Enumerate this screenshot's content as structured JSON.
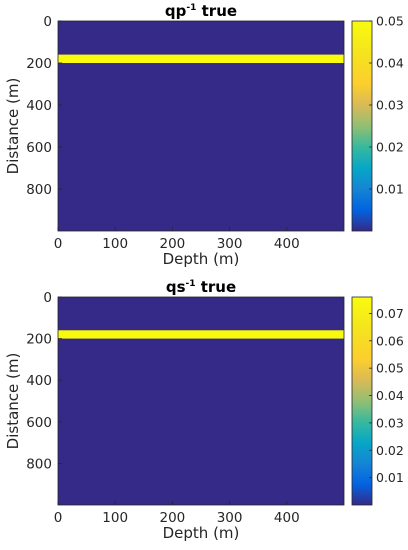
{
  "chart_data": [
    {
      "type": "heatmap",
      "title": "qp",
      "title_superscript": "-1",
      "title_suffix": " true",
      "xlabel": "Depth (m)",
      "ylabel": "Distance (m)",
      "xlim": [
        0,
        500
      ],
      "ylim": [
        0,
        1000
      ],
      "xticks": [
        "0",
        "100",
        "200",
        "300",
        "400"
      ],
      "yticks": [
        "0",
        "200",
        "400",
        "600",
        "800"
      ],
      "background_value": 0,
      "layer": {
        "y_start": 160,
        "y_end": 200,
        "value": 0.05
      },
      "colorbar": {
        "min": 0,
        "max": 0.05,
        "ticks": [
          "0.01",
          "0.02",
          "0.03",
          "0.04",
          "0.05"
        ]
      },
      "colormap": "parula",
      "colors": {
        "low": "#352a87",
        "high": "#f9fb0e"
      }
    },
    {
      "type": "heatmap",
      "title": "qs",
      "title_superscript": "-1",
      "title_suffix": " true",
      "xlabel": "Depth (m)",
      "ylabel": "Distance (m)",
      "xlim": [
        0,
        500
      ],
      "ylim": [
        0,
        1000
      ],
      "xticks": [
        "0",
        "100",
        "200",
        "300",
        "400"
      ],
      "yticks": [
        "0",
        "200",
        "400",
        "600",
        "800"
      ],
      "background_value": 0,
      "layer": {
        "y_start": 160,
        "y_end": 200,
        "value": 0.076
      },
      "colorbar": {
        "min": 0,
        "max": 0.076,
        "ticks": [
          "0.01",
          "0.02",
          "0.03",
          "0.04",
          "0.05",
          "0.06",
          "0.07"
        ]
      },
      "colormap": "parula",
      "colors": {
        "low": "#352a87",
        "high": "#f9fb0e"
      }
    }
  ]
}
